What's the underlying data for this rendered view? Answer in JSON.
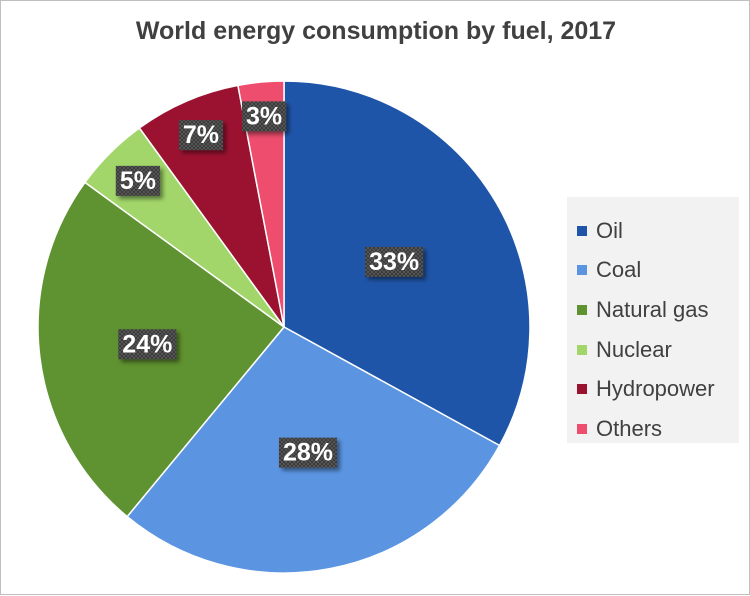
{
  "chart_data": {
    "type": "pie",
    "title": "World energy consumption by fuel, 2017",
    "categories": [
      "Oil",
      "Coal",
      "Natural gas",
      "Nuclear",
      "Hydropower",
      "Others"
    ],
    "values": [
      33,
      28,
      24,
      5,
      7,
      3
    ],
    "data_labels": [
      "33%",
      "28%",
      "24%",
      "5%",
      "7%",
      "3%"
    ],
    "colors": [
      "#1f55a8",
      "#5b95e2",
      "#5f9230",
      "#a2d66b",
      "#9b1230",
      "#ee4d6e"
    ],
    "start_angle_deg": 0,
    "direction": "clockwise",
    "legend_position": "right"
  }
}
